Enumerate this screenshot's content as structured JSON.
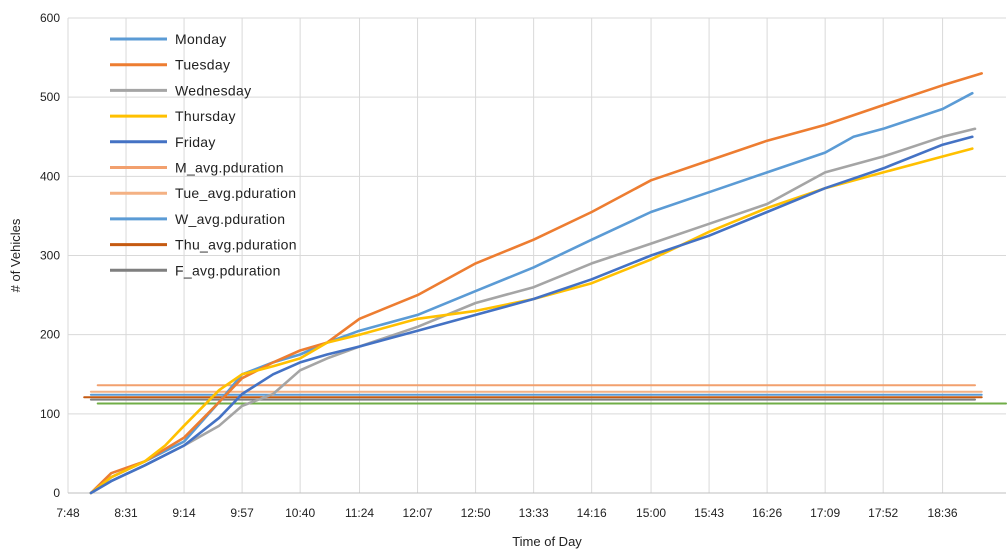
{
  "chart_data": {
    "type": "line",
    "title": "",
    "xlabel": "Time of Day",
    "ylabel": "# of Vehicles",
    "x_ticks": [
      "7:48",
      "8:31",
      "9:14",
      "9:57",
      "10:40",
      "11:24",
      "12:07",
      "12:50",
      "13:33",
      "14:16",
      "15:00",
      "15:43",
      "16:26",
      "17:09",
      "17:52",
      "18:36"
    ],
    "y_ticks": [
      "0",
      "100",
      "200",
      "300",
      "400",
      "500",
      "600"
    ],
    "xlim": [
      "7:48",
      "19:23"
    ],
    "ylim": [
      0,
      600
    ],
    "grid": true,
    "legend": "top-left",
    "series": [
      {
        "name": "Monday",
        "color": "#5B9BD5",
        "x": [
          "8:05",
          "8:20",
          "8:45",
          "9:14",
          "9:40",
          "9:57",
          "10:20",
          "10:40",
          "11:00",
          "11:24",
          "12:07",
          "12:50",
          "13:33",
          "14:16",
          "15:00",
          "15:43",
          "16:26",
          "17:09",
          "17:30",
          "17:52",
          "18:36",
          "18:58"
        ],
        "y": [
          0,
          20,
          40,
          65,
          115,
          150,
          165,
          175,
          190,
          205,
          225,
          255,
          285,
          320,
          355,
          380,
          405,
          430,
          450,
          460,
          485,
          505
        ]
      },
      {
        "name": "Tuesday",
        "color": "#ED7D31",
        "x": [
          "8:05",
          "8:20",
          "8:45",
          "9:14",
          "9:40",
          "9:57",
          "10:20",
          "10:40",
          "11:00",
          "11:24",
          "12:07",
          "12:50",
          "13:33",
          "14:16",
          "15:00",
          "15:43",
          "16:26",
          "17:09",
          "17:52",
          "18:36",
          "19:05"
        ],
        "y": [
          0,
          25,
          40,
          70,
          115,
          145,
          165,
          180,
          190,
          220,
          250,
          290,
          320,
          355,
          395,
          420,
          445,
          465,
          490,
          515,
          530
        ]
      },
      {
        "name": "Wednesday",
        "color": "#A5A5A5",
        "x": [
          "8:05",
          "8:20",
          "8:45",
          "9:14",
          "9:40",
          "9:57",
          "10:20",
          "10:40",
          "11:00",
          "11:24",
          "12:07",
          "12:50",
          "13:33",
          "14:16",
          "15:00",
          "15:43",
          "16:26",
          "17:09",
          "17:52",
          "18:36",
          "19:00"
        ],
        "y": [
          0,
          15,
          35,
          60,
          85,
          110,
          125,
          155,
          170,
          185,
          210,
          240,
          260,
          290,
          315,
          340,
          365,
          405,
          425,
          450,
          460
        ]
      },
      {
        "name": "Thursday",
        "color": "#FFC000",
        "x": [
          "8:05",
          "8:20",
          "8:45",
          "9:00",
          "9:14",
          "9:40",
          "9:57",
          "10:20",
          "10:40",
          "11:00",
          "11:24",
          "12:07",
          "12:50",
          "13:33",
          "14:16",
          "15:00",
          "15:43",
          "16:26",
          "17:09",
          "17:52",
          "18:36",
          "18:58"
        ],
        "y": [
          0,
          20,
          40,
          60,
          85,
          130,
          150,
          160,
          170,
          190,
          200,
          220,
          230,
          245,
          265,
          295,
          330,
          360,
          385,
          405,
          425,
          435
        ]
      },
      {
        "name": "Friday",
        "color": "#4472C4",
        "x": [
          "8:05",
          "8:20",
          "8:45",
          "9:14",
          "9:40",
          "9:57",
          "10:20",
          "10:40",
          "11:00",
          "11:24",
          "12:07",
          "12:50",
          "13:33",
          "14:16",
          "15:00",
          "15:43",
          "16:26",
          "17:09",
          "17:52",
          "18:36",
          "18:58"
        ],
        "y": [
          0,
          15,
          35,
          60,
          95,
          125,
          150,
          165,
          175,
          185,
          205,
          225,
          245,
          270,
          300,
          325,
          355,
          385,
          410,
          440,
          450
        ]
      },
      {
        "name": "M_avg.pduration",
        "color": "#F2A06E",
        "x": [
          "8:10",
          "19:00"
        ],
        "y": [
          136,
          136
        ]
      },
      {
        "name": "Tue_avg.pduration",
        "color": "#F4B183",
        "x": [
          "8:05",
          "19:05"
        ],
        "y": [
          128,
          128
        ]
      },
      {
        "name": "W_avg.pduration",
        "color": "#5B9BD5",
        "x": [
          "8:05",
          "19:05"
        ],
        "y": [
          124,
          124
        ]
      },
      {
        "name": "Thu_avg.pduration",
        "color": "#C55A11",
        "x": [
          "8:00",
          "19:05"
        ],
        "y": [
          121,
          121
        ]
      },
      {
        "name": "F_avg.pduration",
        "color": "#7F7F7F",
        "x": [
          "8:05",
          "19:00"
        ],
        "y": [
          118,
          118
        ]
      },
      {
        "color": "#70AD47",
        "x": [
          "8:10",
          "19:23"
        ],
        "y": [
          113,
          113
        ]
      }
    ]
  }
}
